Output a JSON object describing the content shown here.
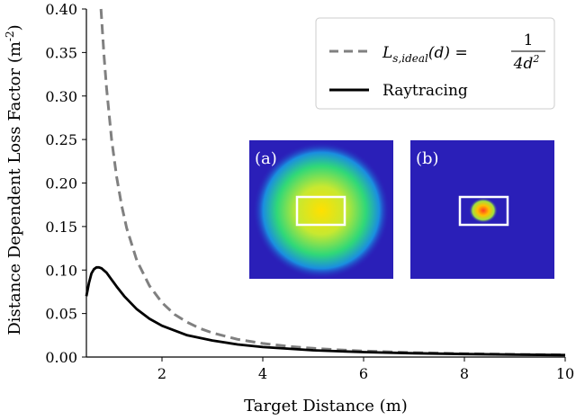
{
  "chart_data": {
    "type": "line",
    "title": "",
    "xlabel": "Target Distance (m)",
    "ylabel": "Distance Dependent Loss Factor (m",
    "ylabel_sup": "-2",
    "ylabel_close": ")",
    "xlim": [
      0.5,
      10
    ],
    "ylim": [
      0,
      0.4
    ],
    "xticks": [
      2,
      4,
      6,
      8,
      10
    ],
    "yticks": [
      0.0,
      0.05,
      0.1,
      0.15,
      0.2,
      0.25,
      0.3,
      0.35,
      0.4
    ],
    "grid": false,
    "legend": "top-right",
    "series": [
      {
        "name": "L_{s,ideal}(d) = 1/(4d^2)",
        "style": "dashed",
        "color": "#808080",
        "x": [
          0.79,
          0.85,
          0.9,
          1.0,
          1.1,
          1.2,
          1.3,
          1.5,
          1.75,
          2.0,
          2.25,
          2.5,
          2.75,
          3.0,
          3.5,
          4.0,
          4.5,
          5.0,
          5.5,
          6.0,
          7.0,
          8.0,
          9.0,
          10.0
        ],
        "y": [
          0.4,
          0.346,
          0.309,
          0.25,
          0.207,
          0.174,
          0.148,
          0.111,
          0.082,
          0.0625,
          0.049,
          0.04,
          0.033,
          0.0278,
          0.0204,
          0.0156,
          0.0123,
          0.01,
          0.0083,
          0.0069,
          0.0051,
          0.0039,
          0.0031,
          0.0025
        ]
      },
      {
        "name": "Raytracing",
        "style": "solid",
        "color": "#000000",
        "x": [
          0.5,
          0.55,
          0.6,
          0.65,
          0.7,
          0.75,
          0.8,
          0.9,
          1.0,
          1.1,
          1.25,
          1.5,
          1.75,
          2.0,
          2.5,
          3.0,
          3.5,
          4.0,
          5.0,
          6.0,
          7.0,
          8.0,
          9.0,
          10.0
        ],
        "y": [
          0.07,
          0.085,
          0.096,
          0.101,
          0.103,
          0.103,
          0.102,
          0.097,
          0.089,
          0.081,
          0.07,
          0.055,
          0.044,
          0.036,
          0.025,
          0.019,
          0.0145,
          0.0115,
          0.0078,
          0.0057,
          0.0043,
          0.0034,
          0.0028,
          0.0023
        ]
      }
    ],
    "legend_entries": {
      "ideal_prefix": "L",
      "ideal_sub": "s,ideal",
      "ideal_arg": "(d) =",
      "ideal_numerator": "1",
      "ideal_denominator": "4d",
      "ideal_denominator_sup": "2",
      "raytracing": "Raytracing"
    },
    "insets": [
      {
        "tag": "(a)",
        "background": "#2a1fb8",
        "blob": "large green-yellow spot"
      },
      {
        "tag": "(b)",
        "background": "#2a1fb8",
        "blob": "small yellow-red spot"
      }
    ]
  }
}
